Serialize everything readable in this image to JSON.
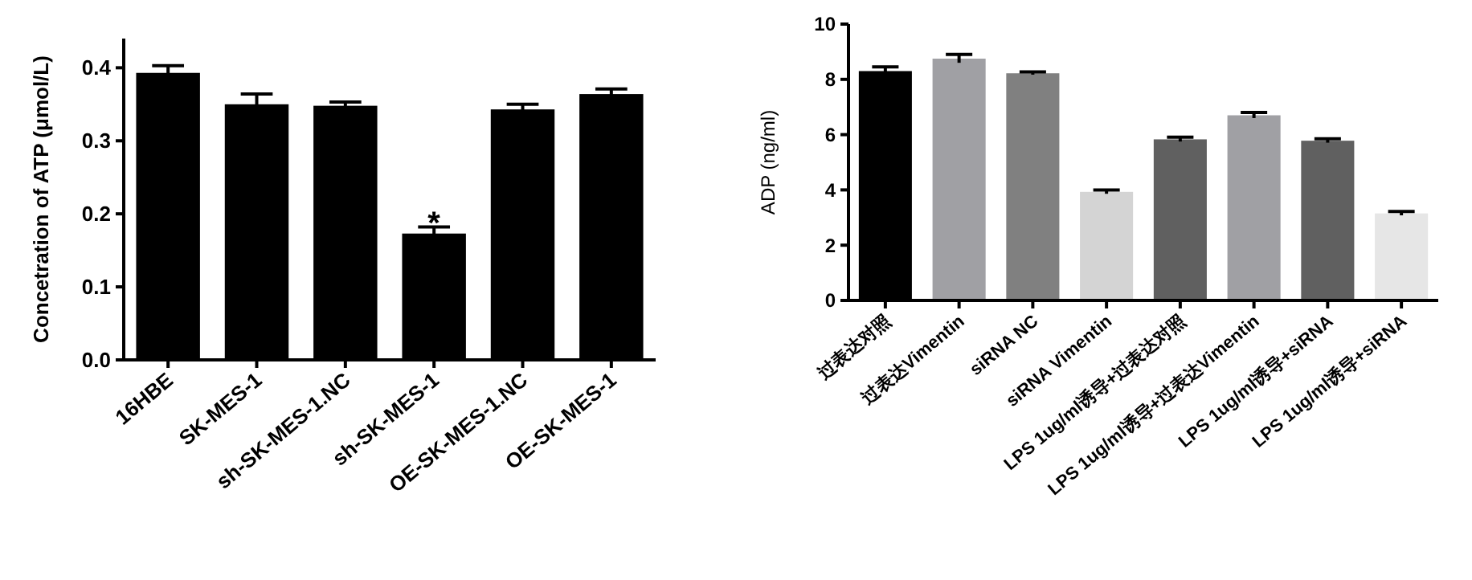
{
  "chart_data": [
    {
      "type": "bar",
      "ylabel": "Concetration of ATP (μmol/L)",
      "categories": [
        "16HBE",
        "SK-MES-1",
        "sh-SK-MES-1.NC",
        "sh-SK-MES-1",
        "OE-SK-MES-1.NC",
        "OE-SK-MES-1"
      ],
      "values": [
        0.393,
        0.35,
        0.348,
        0.173,
        0.343,
        0.364
      ],
      "errors": [
        0.01,
        0.014,
        0.005,
        0.009,
        0.007,
        0.007
      ],
      "color": "#000000",
      "ylim": [
        0,
        0.44
      ],
      "yticks": [
        {
          "value": 0,
          "label": "0.0"
        },
        0.1,
        0.2,
        0.3,
        0.4
      ],
      "annotations": [
        {
          "text": "*",
          "x": "sh-SK-MES-1",
          "y": 0.19
        }
      ]
    },
    {
      "type": "bar",
      "ylabel": "ADP (ng/ml)",
      "categories": [
        "过表达对照",
        "过表达Vimentin",
        "siRNA NC",
        "siRNA Vimentin",
        "LPS 1ug/ml诱导+过表达对照",
        "LPS 1ug/ml诱导+过表达Vimentin",
        "LPS 1ug/ml诱导+siRNA",
        "LPS 1ug/ml诱导+siRNA"
      ],
      "values": [
        8.3,
        8.75,
        8.22,
        3.93,
        5.83,
        6.7,
        5.78,
        3.15
      ],
      "errors": [
        0.15,
        0.15,
        0.05,
        0.07,
        0.08,
        0.1,
        0.07,
        0.07
      ],
      "colors": [
        "#000000",
        "#a0a0a4",
        "#808080",
        "#d4d4d4",
        "#606060",
        "#a0a0a4",
        "#606060",
        "#e6e6e6"
      ],
      "ylim": [
        0,
        10
      ],
      "yticks": [
        0,
        2,
        4,
        6,
        8,
        10
      ]
    }
  ]
}
